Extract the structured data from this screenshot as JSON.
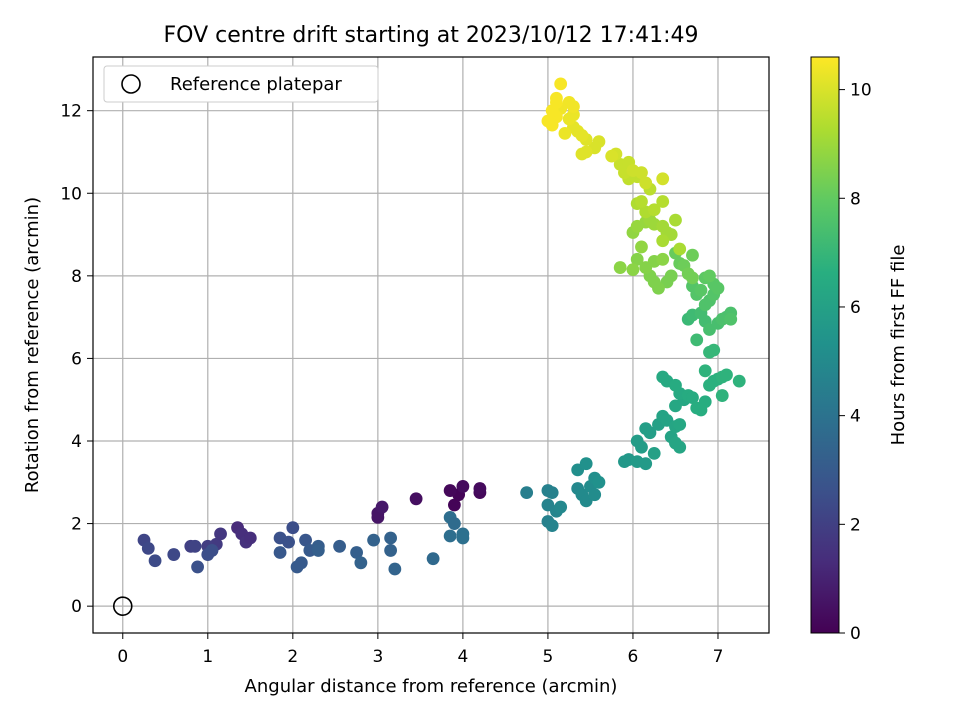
{
  "chart_data": {
    "type": "scatter",
    "title": "FOV centre drift starting at 2023/10/12 17:41:49",
    "xlabel": "Angular distance from reference (arcmin)",
    "ylabel": "Rotation from reference (arcmin)",
    "xlim": [
      -0.35,
      7.6
    ],
    "ylim": [
      -0.65,
      13.3
    ],
    "xticks": [
      "0",
      "1",
      "2",
      "3",
      "4",
      "5",
      "6",
      "7"
    ],
    "yticks": [
      "0",
      "2",
      "4",
      "6",
      "8",
      "10",
      "12"
    ],
    "grid": true,
    "legend": {
      "placement": "top-left",
      "entries": [
        "Reference platepar"
      ]
    },
    "reference_point": {
      "x": 0,
      "y": 0
    },
    "colorbar": {
      "label": "Hours from first FF file",
      "range": [
        0,
        10.6
      ],
      "ticks": [
        "0",
        "2",
        "4",
        "6",
        "8",
        "10"
      ],
      "colormap": "viridis"
    },
    "series": [
      {
        "points_xyh": [
          [
            3.9,
            2.45,
            0.1
          ],
          [
            3.95,
            2.7,
            0.1
          ],
          [
            3.85,
            2.8,
            0.2
          ],
          [
            4.0,
            2.9,
            0.3
          ],
          [
            4.2,
            2.75,
            0.2
          ],
          [
            4.2,
            2.85,
            0.3
          ],
          [
            3.45,
            2.6,
            0.4
          ],
          [
            3.0,
            2.15,
            0.6
          ],
          [
            3.0,
            2.25,
            0.6
          ],
          [
            3.05,
            2.4,
            0.7
          ],
          [
            1.35,
            1.9,
            1.3
          ],
          [
            1.4,
            1.75,
            1.4
          ],
          [
            1.45,
            1.55,
            1.5
          ],
          [
            1.5,
            1.65,
            1.4
          ],
          [
            1.1,
            1.5,
            1.8
          ],
          [
            1.15,
            1.75,
            1.7
          ],
          [
            1.0,
            1.45,
            1.9
          ],
          [
            0.8,
            1.45,
            2.0
          ],
          [
            0.85,
            1.45,
            2.1
          ],
          [
            0.25,
            1.6,
            2.2
          ],
          [
            0.3,
            1.4,
            2.3
          ],
          [
            0.38,
            1.1,
            2.4
          ],
          [
            0.6,
            1.25,
            2.3
          ],
          [
            0.88,
            0.95,
            2.6
          ],
          [
            1.0,
            1.25,
            2.5
          ],
          [
            1.05,
            1.35,
            2.5
          ],
          [
            1.85,
            1.65,
            2.6
          ],
          [
            1.95,
            1.55,
            2.6
          ],
          [
            2.0,
            1.9,
            2.5
          ],
          [
            2.15,
            1.6,
            2.8
          ],
          [
            1.85,
            1.3,
            2.9
          ],
          [
            2.05,
            0.95,
            3.0
          ],
          [
            2.1,
            1.05,
            3.0
          ],
          [
            2.2,
            1.35,
            3.0
          ],
          [
            2.3,
            1.45,
            3.1
          ],
          [
            2.55,
            1.45,
            3.1
          ],
          [
            2.3,
            1.35,
            3.2
          ],
          [
            2.75,
            1.3,
            3.2
          ],
          [
            2.8,
            1.05,
            3.3
          ],
          [
            2.95,
            1.6,
            3.3
          ],
          [
            3.15,
            1.65,
            3.3
          ],
          [
            3.15,
            1.35,
            3.3
          ],
          [
            3.2,
            0.9,
            3.4
          ],
          [
            3.65,
            1.15,
            3.6
          ],
          [
            3.85,
            2.15,
            3.8
          ],
          [
            3.9,
            2.0,
            3.7
          ],
          [
            3.85,
            1.7,
            3.8
          ],
          [
            4.0,
            1.75,
            3.9
          ],
          [
            4.0,
            1.65,
            3.9
          ],
          [
            4.75,
            2.75,
            4.5
          ],
          [
            5.0,
            2.8,
            4.6
          ],
          [
            5.05,
            2.75,
            4.6
          ],
          [
            5.0,
            2.05,
            4.6
          ],
          [
            5.05,
            1.95,
            4.7
          ],
          [
            5.0,
            2.45,
            4.7
          ],
          [
            5.1,
            2.3,
            4.8
          ],
          [
            5.15,
            2.4,
            4.9
          ],
          [
            5.35,
            2.85,
            4.9
          ],
          [
            5.4,
            2.7,
            5.0
          ],
          [
            5.45,
            2.55,
            5.0
          ],
          [
            5.5,
            2.9,
            5.1
          ],
          [
            5.55,
            3.1,
            5.2
          ],
          [
            5.55,
            2.7,
            5.1
          ],
          [
            5.35,
            3.3,
            5.2
          ],
          [
            5.45,
            3.45,
            5.3
          ],
          [
            5.6,
            3.0,
            5.3
          ],
          [
            5.9,
            3.5,
            5.6
          ],
          [
            5.95,
            3.55,
            5.6
          ],
          [
            6.05,
            3.5,
            5.7
          ],
          [
            6.15,
            3.45,
            5.7
          ],
          [
            6.05,
            4.0,
            5.8
          ],
          [
            6.1,
            3.85,
            5.8
          ],
          [
            6.15,
            4.3,
            5.9
          ],
          [
            6.2,
            4.2,
            5.9
          ],
          [
            6.25,
            3.7,
            6.0
          ],
          [
            6.3,
            4.4,
            6.0
          ],
          [
            6.35,
            4.6,
            6.1
          ],
          [
            6.4,
            4.5,
            6.1
          ],
          [
            6.45,
            4.1,
            6.1
          ],
          [
            6.5,
            3.95,
            6.2
          ],
          [
            6.55,
            3.85,
            6.2
          ],
          [
            6.5,
            4.35,
            6.2
          ],
          [
            6.55,
            4.4,
            6.3
          ],
          [
            6.5,
            4.85,
            6.3
          ],
          [
            6.6,
            5.0,
            6.3
          ],
          [
            6.55,
            5.15,
            6.4
          ],
          [
            6.4,
            5.45,
            6.4
          ],
          [
            6.35,
            5.55,
            6.4
          ],
          [
            6.5,
            5.35,
            6.5
          ],
          [
            6.65,
            5.1,
            6.5
          ],
          [
            6.7,
            5.05,
            6.5
          ],
          [
            6.75,
            4.8,
            6.6
          ],
          [
            6.8,
            4.75,
            6.6
          ],
          [
            6.85,
            4.95,
            6.6
          ],
          [
            6.9,
            5.35,
            6.7
          ],
          [
            6.95,
            5.45,
            6.7
          ],
          [
            7.0,
            5.5,
            6.7
          ],
          [
            7.05,
            5.55,
            6.8
          ],
          [
            7.1,
            5.6,
            6.8
          ],
          [
            7.25,
            5.45,
            6.8
          ],
          [
            7.05,
            5.1,
            6.8
          ],
          [
            6.85,
            5.7,
            6.8
          ],
          [
            6.9,
            6.15,
            7.0
          ],
          [
            6.95,
            6.2,
            7.0
          ],
          [
            6.65,
            6.95,
            7.1
          ],
          [
            6.7,
            7.05,
            7.2
          ],
          [
            6.75,
            6.45,
            7.2
          ],
          [
            6.8,
            7.1,
            7.3
          ],
          [
            6.85,
            6.9,
            7.3
          ],
          [
            6.9,
            6.7,
            7.4
          ],
          [
            7.0,
            6.85,
            7.4
          ],
          [
            7.1,
            7.0,
            7.4
          ],
          [
            7.05,
            6.95,
            7.5
          ],
          [
            7.15,
            7.1,
            7.5
          ],
          [
            7.15,
            6.95,
            7.6
          ],
          [
            6.85,
            7.3,
            7.6
          ],
          [
            6.9,
            7.4,
            7.6
          ],
          [
            6.95,
            7.55,
            7.7
          ],
          [
            6.75,
            7.55,
            7.7
          ],
          [
            6.7,
            7.75,
            7.7
          ],
          [
            6.8,
            7.65,
            7.8
          ],
          [
            6.95,
            7.8,
            7.8
          ],
          [
            7.0,
            7.7,
            7.8
          ],
          [
            6.85,
            7.95,
            7.9
          ],
          [
            6.9,
            8.0,
            8.0
          ],
          [
            6.5,
            8.55,
            8.1
          ],
          [
            6.55,
            8.3,
            8.1
          ],
          [
            6.6,
            8.25,
            8.2
          ],
          [
            6.7,
            8.5,
            8.2
          ],
          [
            6.65,
            8.05,
            8.3
          ],
          [
            6.7,
            7.95,
            8.3
          ],
          [
            6.45,
            8.0,
            8.4
          ],
          [
            6.4,
            7.85,
            8.4
          ],
          [
            6.3,
            7.7,
            8.5
          ],
          [
            6.25,
            7.85,
            8.5
          ],
          [
            6.2,
            8.0,
            8.5
          ],
          [
            6.15,
            8.2,
            8.6
          ],
          [
            6.25,
            8.35,
            8.6
          ],
          [
            6.35,
            8.4,
            8.7
          ],
          [
            6.05,
            8.4,
            8.6
          ],
          [
            5.85,
            8.2,
            8.7
          ],
          [
            6.0,
            8.15,
            8.7
          ],
          [
            6.1,
            8.7,
            8.8
          ],
          [
            6.0,
            9.05,
            8.8
          ],
          [
            6.05,
            9.2,
            8.9
          ],
          [
            6.15,
            9.3,
            8.9
          ],
          [
            6.2,
            9.35,
            9.0
          ],
          [
            6.25,
            9.25,
            9.0
          ],
          [
            6.35,
            9.2,
            9.1
          ],
          [
            6.4,
            9.05,
            9.1
          ],
          [
            6.45,
            9.0,
            9.1
          ],
          [
            6.5,
            9.35,
            9.2
          ],
          [
            6.35,
            8.85,
            9.2
          ],
          [
            6.55,
            8.65,
            9.2
          ],
          [
            6.15,
            9.55,
            9.3
          ],
          [
            6.05,
            9.75,
            9.3
          ],
          [
            6.1,
            9.8,
            9.4
          ],
          [
            6.25,
            9.6,
            9.4
          ],
          [
            6.35,
            9.8,
            9.4
          ],
          [
            6.2,
            10.1,
            9.5
          ],
          [
            6.05,
            10.4,
            9.6
          ],
          [
            5.95,
            10.35,
            9.6
          ],
          [
            5.9,
            10.5,
            9.7
          ],
          [
            5.85,
            10.7,
            9.7
          ],
          [
            5.95,
            10.75,
            9.7
          ],
          [
            6.0,
            10.55,
            9.8
          ],
          [
            6.1,
            10.5,
            9.8
          ],
          [
            6.15,
            10.25,
            9.8
          ],
          [
            6.35,
            10.35,
            9.9
          ],
          [
            5.8,
            10.95,
            9.9
          ],
          [
            5.75,
            10.9,
            10.0
          ],
          [
            5.6,
            11.25,
            10.0
          ],
          [
            5.55,
            11.1,
            10.0
          ],
          [
            5.45,
            11.0,
            10.1
          ],
          [
            5.4,
            10.95,
            10.1
          ],
          [
            5.45,
            11.3,
            10.1
          ],
          [
            5.4,
            11.4,
            10.2
          ],
          [
            5.35,
            11.5,
            10.2
          ],
          [
            5.3,
            11.6,
            10.2
          ],
          [
            5.2,
            11.45,
            10.3
          ],
          [
            5.25,
            11.8,
            10.3
          ],
          [
            5.3,
            11.9,
            10.3
          ],
          [
            5.3,
            12.1,
            10.4
          ],
          [
            5.25,
            12.2,
            10.4
          ],
          [
            5.15,
            12.05,
            10.4
          ],
          [
            5.1,
            11.85,
            10.5
          ],
          [
            5.0,
            11.75,
            10.5
          ],
          [
            5.05,
            11.65,
            10.5
          ],
          [
            5.05,
            12.0,
            10.5
          ],
          [
            5.1,
            12.2,
            10.5
          ],
          [
            5.1,
            12.3,
            10.5
          ],
          [
            5.15,
            12.65,
            10.5
          ]
        ]
      }
    ]
  }
}
